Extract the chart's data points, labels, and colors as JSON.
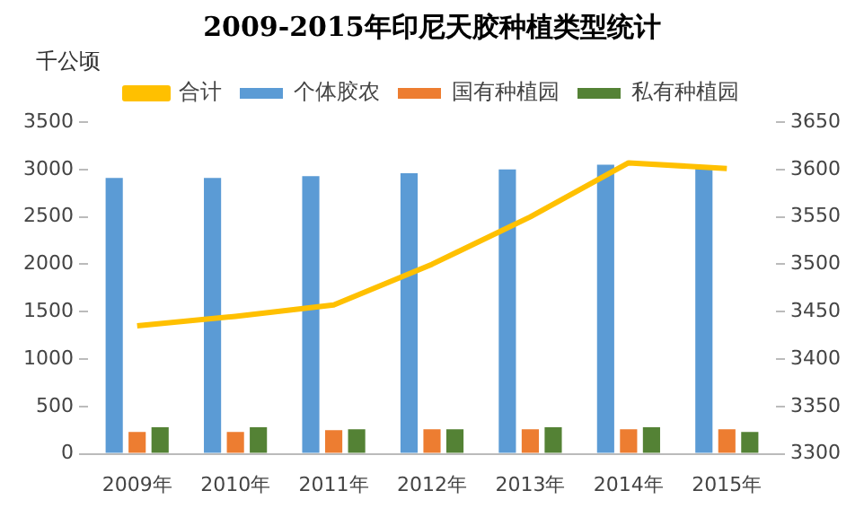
{
  "chart_data": {
    "type": "bar",
    "title": "2009-2015年印尼天胶种植类型统计",
    "ylabel": "千公顷",
    "categories": [
      "2009年",
      "2010年",
      "2011年",
      "2012年",
      "2013年",
      "2014年",
      "2015年"
    ],
    "series": [
      {
        "name": "个体胶农",
        "color": "#5b9bd5",
        "values": [
          2910,
          2910,
          2930,
          2960,
          3000,
          3050,
          3010
        ]
      },
      {
        "name": "国有种植园",
        "color": "#ed7d31",
        "values": [
          230,
          230,
          250,
          260,
          260,
          260,
          260
        ]
      },
      {
        "name": "私有种植园",
        "color": "#548235",
        "values": [
          280,
          280,
          260,
          260,
          280,
          280,
          230
        ]
      },
      {
        "name": "合计",
        "type": "line",
        "axis": "y2",
        "color": "#ffc000",
        "values": [
          3435,
          3445,
          3457,
          3500,
          3550,
          3607,
          3601
        ]
      }
    ],
    "ylim": [
      0,
      3500
    ],
    "yticks": [
      0,
      500,
      1000,
      1500,
      2000,
      2500,
      3000,
      3500
    ],
    "y2lim": [
      3300,
      3650
    ],
    "y2ticks": [
      3300,
      3350,
      3400,
      3450,
      3500,
      3550,
      3600,
      3650
    ],
    "grid": false,
    "legend": "top",
    "marker": "none"
  }
}
